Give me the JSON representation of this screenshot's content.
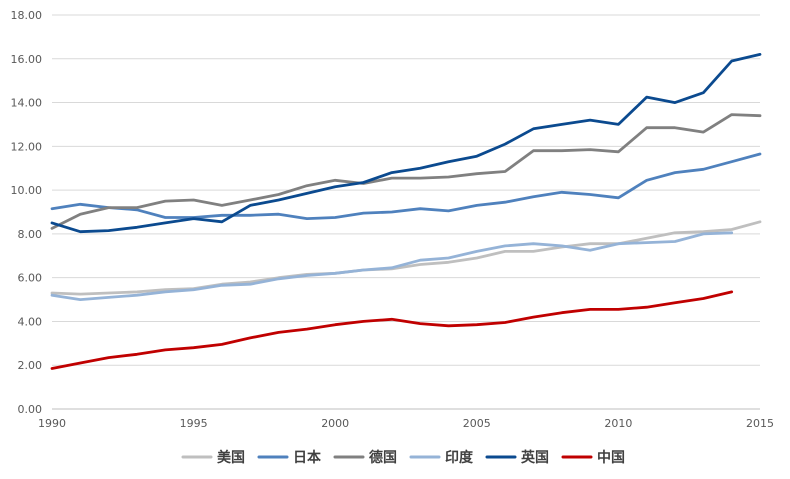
{
  "chart_data": {
    "type": "line",
    "title": "",
    "xlabel": "",
    "ylabel": "",
    "xlim": [
      1990,
      2015
    ],
    "ylim": [
      0,
      18
    ],
    "x_ticks": [
      1990,
      1995,
      2000,
      2005,
      2010,
      2015
    ],
    "x_tick_labels": [
      "1990",
      "1995",
      "2000",
      "2005",
      "2010",
      "2015"
    ],
    "y_ticks": [
      0,
      2,
      4,
      6,
      8,
      10,
      12,
      14,
      16,
      18
    ],
    "y_tick_labels": [
      "0.00",
      "2.00",
      "4.00",
      "6.00",
      "8.00",
      "10.00",
      "12.00",
      "14.00",
      "16.00",
      "18.00"
    ],
    "grid": "horizontal",
    "legend_position": "bottom",
    "series": [
      {
        "name": "美国",
        "color": "#bfbfbf",
        "x": [
          1990,
          1991,
          1992,
          1993,
          1994,
          1995,
          1996,
          1997,
          1998,
          1999,
          2000,
          2001,
          2002,
          2003,
          2004,
          2005,
          2006,
          2007,
          2008,
          2009,
          2010,
          2011,
          2012,
          2013,
          2014,
          2015
        ],
        "values": [
          5.3,
          5.25,
          5.3,
          5.35,
          5.45,
          5.5,
          5.7,
          5.8,
          6.0,
          6.15,
          6.2,
          6.35,
          6.4,
          6.6,
          6.7,
          6.9,
          7.2,
          7.2,
          7.4,
          7.55,
          7.55,
          7.8,
          8.05,
          8.1,
          8.2,
          8.55
        ]
      },
      {
        "name": "日本",
        "color": "#4f81bd",
        "x": [
          1990,
          1991,
          1992,
          1993,
          1994,
          1995,
          1996,
          1997,
          1998,
          1999,
          2000,
          2001,
          2002,
          2003,
          2004,
          2005,
          2006,
          2007,
          2008,
          2009,
          2010,
          2011,
          2012,
          2013,
          2014,
          2015
        ],
        "values": [
          9.15,
          9.35,
          9.2,
          9.1,
          8.75,
          8.75,
          8.85,
          8.85,
          8.9,
          8.7,
          8.75,
          8.95,
          9.0,
          9.15,
          9.05,
          9.3,
          9.45,
          9.7,
          9.9,
          9.8,
          9.65,
          10.45,
          10.8,
          10.95,
          11.3,
          11.65
        ]
      },
      {
        "name": "德国",
        "color": "#808080",
        "x": [
          1990,
          1991,
          1992,
          1993,
          1994,
          1995,
          1996,
          1997,
          1998,
          1999,
          2000,
          2001,
          2002,
          2003,
          2004,
          2005,
          2006,
          2007,
          2008,
          2009,
          2010,
          2011,
          2012,
          2013,
          2014,
          2015
        ],
        "values": [
          8.25,
          8.9,
          9.2,
          9.2,
          9.5,
          9.55,
          9.3,
          9.55,
          9.8,
          10.2,
          10.45,
          10.3,
          10.55,
          10.55,
          10.6,
          10.75,
          10.85,
          11.8,
          11.8,
          11.85,
          11.75,
          12.85,
          12.85,
          12.65,
          13.45,
          13.4
        ]
      },
      {
        "name": "印度",
        "color": "#95b3d7",
        "x": [
          1990,
          1991,
          1992,
          1993,
          1994,
          1995,
          1996,
          1997,
          1998,
          1999,
          2000,
          2001,
          2002,
          2003,
          2004,
          2005,
          2006,
          2007,
          2008,
          2009,
          2010,
          2011,
          2012,
          2013,
          2014
        ],
        "values": [
          5.2,
          5.0,
          5.1,
          5.2,
          5.35,
          5.45,
          5.65,
          5.7,
          5.95,
          6.1,
          6.2,
          6.35,
          6.45,
          6.8,
          6.9,
          7.2,
          7.45,
          7.55,
          7.45,
          7.25,
          7.55,
          7.6,
          7.65,
          8.0,
          8.05
        ]
      },
      {
        "name": "英国",
        "color": "#0b4a8f",
        "x": [
          1990,
          1991,
          1992,
          1993,
          1994,
          1995,
          1996,
          1997,
          1998,
          1999,
          2000,
          2001,
          2002,
          2003,
          2004,
          2005,
          2006,
          2007,
          2008,
          2009,
          2010,
          2011,
          2012,
          2013,
          2014,
          2015
        ],
        "values": [
          8.5,
          8.1,
          8.15,
          8.3,
          8.5,
          8.7,
          8.55,
          9.3,
          9.55,
          9.85,
          10.15,
          10.35,
          10.8,
          11.0,
          11.3,
          11.55,
          12.1,
          12.8,
          13.0,
          13.2,
          13.0,
          14.25,
          14.0,
          14.45,
          15.9,
          16.2
        ]
      },
      {
        "name": "中国",
        "color": "#c00000",
        "x": [
          1990,
          1991,
          1992,
          1993,
          1994,
          1995,
          1996,
          1997,
          1998,
          1999,
          2000,
          2001,
          2002,
          2003,
          2004,
          2005,
          2006,
          2007,
          2008,
          2009,
          2010,
          2011,
          2012,
          2013,
          2014
        ],
        "values": [
          1.85,
          2.1,
          2.35,
          2.5,
          2.7,
          2.8,
          2.95,
          3.25,
          3.5,
          3.65,
          3.85,
          4.0,
          4.1,
          3.9,
          3.8,
          3.85,
          3.95,
          4.2,
          4.4,
          4.55,
          4.55,
          4.65,
          4.85,
          5.05,
          5.35
        ]
      }
    ]
  }
}
